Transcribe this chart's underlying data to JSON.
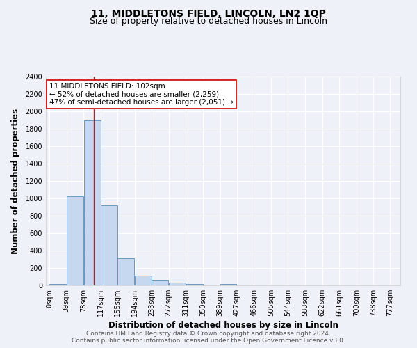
{
  "title": "11, MIDDLETONS FIELD, LINCOLN, LN2 1QP",
  "subtitle": "Size of property relative to detached houses in Lincoln",
  "xlabel": "Distribution of detached houses by size in Lincoln",
  "ylabel": "Number of detached properties",
  "footer_line1": "Contains HM Land Registry data © Crown copyright and database right 2024.",
  "footer_line2": "Contains public sector information licensed under the Open Government Licence v3.0.",
  "annotation_line1": "11 MIDDLETONS FIELD: 102sqm",
  "annotation_line2": "← 52% of detached houses are smaller (2,259)",
  "annotation_line3": "47% of semi-detached houses are larger (2,051) →",
  "bar_left_edges": [
    0,
    39,
    78,
    117,
    155,
    194,
    233,
    272,
    311,
    350,
    389,
    427,
    466,
    505,
    544,
    583,
    622,
    661,
    700,
    738
  ],
  "bar_widths": [
    39,
    39,
    39,
    38,
    39,
    39,
    39,
    39,
    39,
    39,
    38,
    39,
    39,
    39,
    39,
    39,
    39,
    39,
    38,
    39
  ],
  "bar_heights": [
    20,
    1025,
    1900,
    920,
    310,
    110,
    55,
    30,
    15,
    0,
    15,
    0,
    0,
    0,
    0,
    0,
    0,
    0,
    0,
    0
  ],
  "bar_color": "#c5d8f0",
  "bar_edge_color": "#5b8db8",
  "red_line_x": 102,
  "ylim": [
    0,
    2400
  ],
  "yticks": [
    0,
    200,
    400,
    600,
    800,
    1000,
    1200,
    1400,
    1600,
    1800,
    2000,
    2200,
    2400
  ],
  "xtick_labels": [
    "0sqm",
    "39sqm",
    "78sqm",
    "117sqm",
    "155sqm",
    "194sqm",
    "233sqm",
    "272sqm",
    "311sqm",
    "350sqm",
    "389sqm",
    "427sqm",
    "466sqm",
    "505sqm",
    "544sqm",
    "583sqm",
    "622sqm",
    "661sqm",
    "700sqm",
    "738sqm",
    "777sqm"
  ],
  "xtick_positions": [
    0,
    39,
    78,
    117,
    155,
    194,
    233,
    272,
    311,
    350,
    389,
    427,
    466,
    505,
    544,
    583,
    622,
    661,
    700,
    738,
    777
  ],
  "background_color": "#eef2f8",
  "grid_color": "#ffffff",
  "annotation_box_facecolor": "#ffffff",
  "annotation_box_edge_color": "#cc0000",
  "title_fontsize": 10,
  "subtitle_fontsize": 9,
  "axis_label_fontsize": 8.5,
  "tick_fontsize": 7,
  "annotation_fontsize": 7.5,
  "footer_fontsize": 6.5
}
